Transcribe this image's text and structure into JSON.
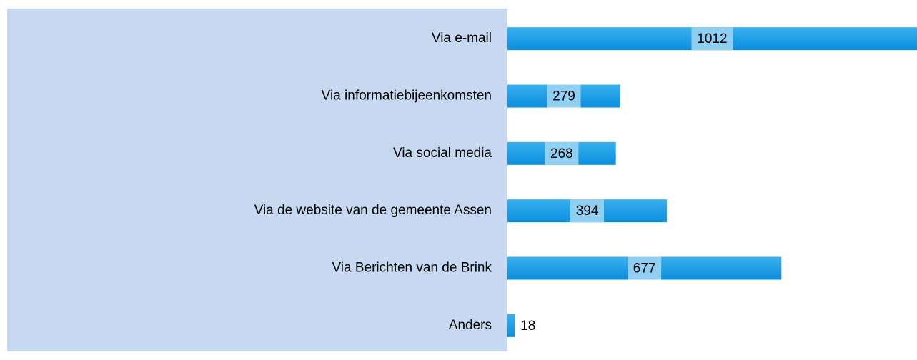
{
  "chart_data": {
    "type": "bar",
    "orientation": "horizontal",
    "categories": [
      "Via e-mail",
      "Via informatiebijeenkomsten",
      "Via social media",
      "Via de website van de gemeente Assen",
      "Via Berichten van de Brink",
      "Anders"
    ],
    "values": [
      1012,
      279,
      268,
      394,
      677,
      18
    ],
    "color": "#1a9de6"
  }
}
